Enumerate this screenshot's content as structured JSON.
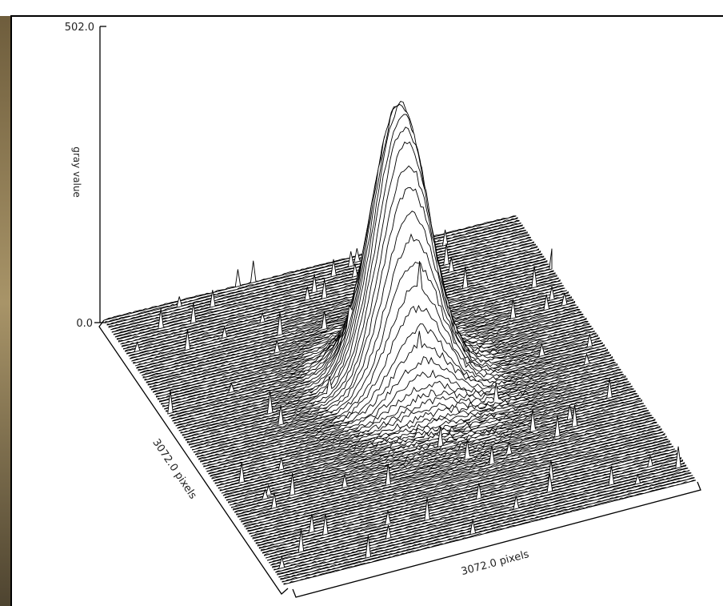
{
  "plot": {
    "z_max_label": "502.0",
    "z_min_label": "0.0",
    "z_axis_label": "gray value",
    "left_axis_label": "3072.0 pixels",
    "bottom_axis_label": "3072.0 pixels"
  }
}
